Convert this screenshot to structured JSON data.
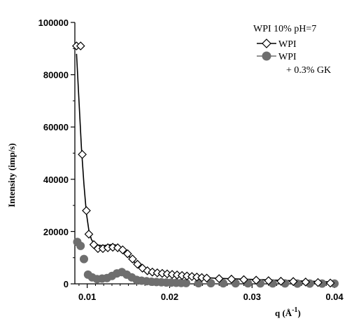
{
  "chart_data": {
    "type": "scatter",
    "title": "WPI 10% pH=7",
    "xlabel_prefix": "q (Å",
    "xlabel_sup": "-1",
    "xlabel_suffix": ")",
    "ylabel": "Intensity (imp/s)",
    "xlim": [
      0.0085,
      0.0405
    ],
    "ylim": [
      0,
      100000
    ],
    "x_ticks": [
      0.01,
      0.02,
      0.03,
      0.04
    ],
    "x_tick_labels": [
      "0.01",
      "0.02",
      "0.03",
      "0.04"
    ],
    "y_ticks": [
      0,
      20000,
      40000,
      60000,
      80000,
      100000
    ],
    "y_tick_labels": [
      "0",
      "20000",
      "40000",
      "60000",
      "80000",
      "100000"
    ],
    "grid": false,
    "legend_position": "top-right",
    "series": [
      {
        "name": "WPI",
        "marker": "open-diamond",
        "color": "#000000",
        "x": [
          0.0087,
          0.0092,
          0.0094,
          0.0099,
          0.0102,
          0.0108,
          0.0113,
          0.0119,
          0.0125,
          0.0131,
          0.0137,
          0.0143,
          0.0149,
          0.0155,
          0.0161,
          0.0167,
          0.0173,
          0.0179,
          0.0185,
          0.0191,
          0.0197,
          0.0203,
          0.0209,
          0.0215,
          0.0221,
          0.0227,
          0.0233,
          0.0239,
          0.0245,
          0.026,
          0.0275,
          0.029,
          0.0305,
          0.032,
          0.0335,
          0.035,
          0.0365,
          0.038,
          0.0395
        ],
        "y": [
          91000,
          91000,
          49500,
          28000,
          19000,
          15000,
          13500,
          13500,
          13800,
          14000,
          13800,
          13000,
          11500,
          9500,
          7500,
          6000,
          5000,
          4500,
          4200,
          4000,
          3800,
          3600,
          3400,
          3200,
          3000,
          2800,
          2600,
          2400,
          2200,
          2000,
          1800,
          1600,
          1400,
          1200,
          1000,
          900,
          700,
          500,
          300
        ]
      },
      {
        "name": "WPI\n+ 0.3% GK",
        "marker": "filled-circle",
        "color": "#6e6e6e",
        "x": [
          0.0088,
          0.0092,
          0.0096,
          0.0101,
          0.0106,
          0.0112,
          0.0118,
          0.0124,
          0.013,
          0.0136,
          0.0142,
          0.0148,
          0.0154,
          0.016,
          0.0166,
          0.0172,
          0.0178,
          0.0184,
          0.019,
          0.0196,
          0.0202,
          0.0208,
          0.0214,
          0.022,
          0.0235,
          0.025,
          0.0265,
          0.028,
          0.0295,
          0.031,
          0.0325,
          0.034,
          0.0355,
          0.037,
          0.0385,
          0.04
        ],
        "y": [
          16000,
          14500,
          9500,
          3500,
          2500,
          1800,
          2000,
          2200,
          3000,
          4000,
          4500,
          3500,
          2500,
          1500,
          1200,
          1000,
          800,
          700,
          600,
          500,
          450,
          400,
          350,
          300,
          250,
          250,
          200,
          200,
          200,
          150,
          150,
          150,
          100,
          100,
          100,
          100
        ]
      }
    ],
    "fit_curve": {
      "x": [
        0.0087,
        0.009,
        0.0093,
        0.0096,
        0.0099,
        0.0102,
        0.0105,
        0.0108,
        0.0111,
        0.0114,
        0.0118,
        0.0122,
        0.0126,
        0.013,
        0.0134,
        0.0138,
        0.0142,
        0.0146,
        0.015,
        0.0155,
        0.016,
        0.0166,
        0.0172,
        0.0178,
        0.0185,
        0.0195,
        0.021,
        0.0225,
        0.024,
        0.026,
        0.028,
        0.03,
        0.032,
        0.034,
        0.036,
        0.038,
        0.04
      ],
      "y": [
        88000,
        70000,
        52000,
        38000,
        27000,
        20500,
        17000,
        15500,
        15000,
        14800,
        14600,
        14700,
        14900,
        15000,
        14900,
        14400,
        13500,
        12300,
        10800,
        9000,
        7400,
        6000,
        5000,
        4300,
        3800,
        3300,
        2900,
        2600,
        2400,
        2100,
        1900,
        1700,
        1500,
        1300,
        1100,
        900,
        700
      ]
    },
    "legend": [
      {
        "label_line1": "WPI",
        "label_line2": ""
      },
      {
        "label_line1": "WPI",
        "label_line2": "+ 0.3% GK"
      }
    ]
  }
}
